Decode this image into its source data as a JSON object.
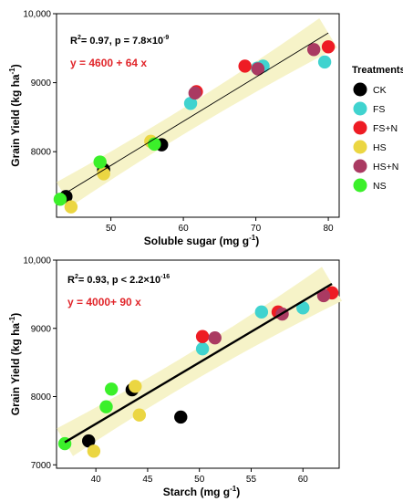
{
  "chart_data": [
    {
      "type": "scatter",
      "xlabel": "Soluble sugar (mg g",
      "xlabel_sup": "-1",
      "xlabel_end": ")",
      "ylabel": "Grain Yield (kg ha",
      "ylabel_sup": "-1",
      "ylabel_end": ")",
      "xlim": [
        42.5,
        81.5
      ],
      "ylim": [
        7050,
        10000
      ],
      "x_ticks": [
        50,
        60,
        70,
        80
      ],
      "y_ticks": [
        8000,
        9000,
        10000
      ],
      "y_tick_labels": [
        "8000",
        "9000",
        "10,000"
      ],
      "grid": false,
      "fit": {
        "intercept": 4600,
        "slope": 64,
        "line_width": "thin",
        "x_range": [
          43.5,
          80
        ]
      },
      "annotation_r2": {
        "r2_pre": "R",
        "r2_sup": "2",
        "r2_post": "= 0.97,  p = 7.8×10",
        "p_exp": "-9"
      },
      "equation": "y  = 4600 + 64  x",
      "series": [
        {
          "name": "CK",
          "color": "#000000",
          "points": [
            [
              43.8,
              7350
            ],
            [
              49,
              7740
            ],
            [
              57,
              8100
            ]
          ]
        },
        {
          "name": "FS",
          "color": "#40D3CF",
          "points": [
            [
              61,
              8700
            ],
            [
              70.2,
              9210
            ],
            [
              71,
              9240
            ],
            [
              79.5,
              9300
            ]
          ]
        },
        {
          "name": "FS+N",
          "color": "#EE1C24",
          "points": [
            [
              61.8,
              8870
            ],
            [
              68.5,
              9240
            ],
            [
              80,
              9520
            ]
          ]
        },
        {
          "name": "HS",
          "color": "#EBD642",
          "points": [
            [
              44.5,
              7200
            ],
            [
              49,
              7680
            ],
            [
              55.5,
              8150
            ]
          ]
        },
        {
          "name": "HS+N",
          "color": "#AA3A62",
          "points": [
            [
              61.6,
              8850
            ],
            [
              70.3,
              9200
            ],
            [
              78,
              9480
            ]
          ]
        },
        {
          "name": "NS",
          "color": "#3BF02A",
          "points": [
            [
              43,
              7310
            ],
            [
              48.5,
              7850
            ],
            [
              56,
              8110
            ]
          ]
        }
      ]
    },
    {
      "type": "scatter",
      "xlabel": "Starch (mg g",
      "xlabel_sup": "-1",
      "xlabel_end": ")",
      "ylabel": "Grain Yield (kg ha",
      "ylabel_sup": "-1",
      "ylabel_end": ")",
      "xlim": [
        36.2,
        63.5
      ],
      "ylim": [
        6950,
        10000
      ],
      "x_ticks": [
        40,
        45,
        50,
        55,
        60
      ],
      "y_ticks": [
        7000,
        8000,
        9000,
        10000
      ],
      "y_tick_labels": [
        "7000",
        "8000",
        "9000",
        "10,000"
      ],
      "grid": false,
      "fit": {
        "intercept": 4000,
        "slope": 90,
        "line_width": "thick",
        "x_range": [
          37,
          62.8
        ]
      },
      "annotation_r2": {
        "r2_pre": "R",
        "r2_sup": "2",
        "r2_post": "= 0.93,  p < 2.2×10",
        "p_exp": "-16"
      },
      "equation": "y  = 4000+ 90  x",
      "series": [
        {
          "name": "CK",
          "color": "#000000",
          "points": [
            [
              39.3,
              7350
            ],
            [
              43.5,
              8100
            ],
            [
              48.2,
              7700
            ]
          ]
        },
        {
          "name": "FS",
          "color": "#40D3CF",
          "points": [
            [
              50.3,
              8700
            ],
            [
              56,
              9240
            ],
            [
              60,
              9300
            ]
          ]
        },
        {
          "name": "FS+N",
          "color": "#EE1C24",
          "points": [
            [
              50.3,
              8880
            ],
            [
              57.6,
              9240
            ],
            [
              62.8,
              9520
            ]
          ]
        },
        {
          "name": "HS",
          "color": "#EBD642",
          "points": [
            [
              39.8,
              7200
            ],
            [
              43.8,
              8150
            ],
            [
              44.2,
              7730
            ]
          ]
        },
        {
          "name": "HS+N",
          "color": "#AA3A62",
          "points": [
            [
              51.5,
              8860
            ],
            [
              58,
              9210
            ],
            [
              62,
              9480
            ]
          ]
        },
        {
          "name": "NS",
          "color": "#3BF02A",
          "points": [
            [
              37,
              7310
            ],
            [
              41,
              7850
            ],
            [
              41.5,
              8110
            ]
          ]
        }
      ]
    }
  ],
  "legend": {
    "title": "Treatments",
    "items": [
      {
        "name": "CK",
        "color": "#000000"
      },
      {
        "name": "FS",
        "color": "#40D3CF"
      },
      {
        "name": "FS+N",
        "color": "#EE1C24"
      },
      {
        "name": "HS",
        "color": "#EBD642"
      },
      {
        "name": "HS+N",
        "color": "#AA3A62"
      },
      {
        "name": "NS",
        "color": "#3BF02A"
      }
    ]
  },
  "colors": {
    "ci_band": "#F6F3C8",
    "equation_text": "#E1262B",
    "axis": "#000000"
  }
}
